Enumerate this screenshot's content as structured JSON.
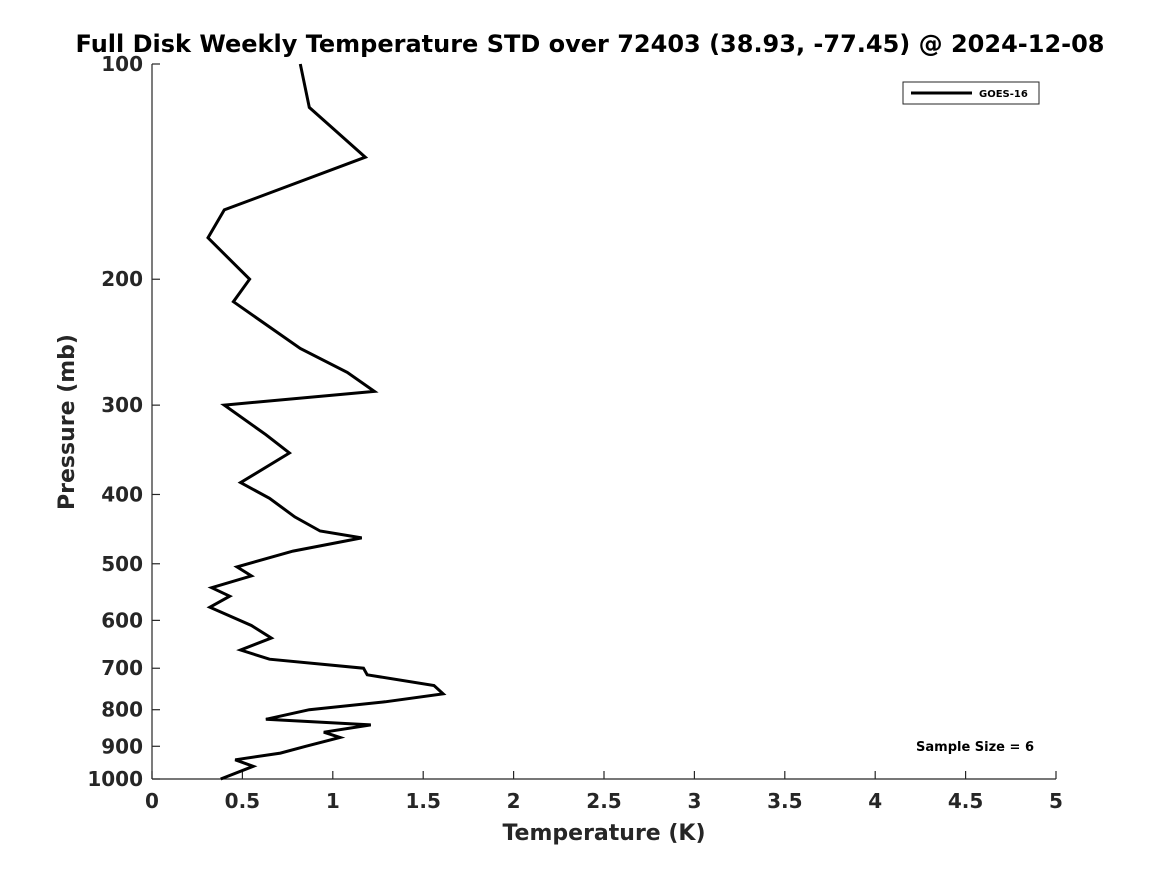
{
  "chart_data": {
    "type": "line",
    "title": "Full Disk Weekly Temperature STD over 72403 (38.93, -77.45) @ 2024-12-08",
    "xlabel": "Temperature (K)",
    "ylabel": "Pressure (mb)",
    "xlim": [
      0,
      5
    ],
    "ylim": [
      100,
      1000
    ],
    "y_scale": "log",
    "y_reversed": true,
    "x_ticks": [
      "0",
      "0.5",
      "1",
      "1.5",
      "2",
      "2.5",
      "3",
      "3.5",
      "4",
      "4.5",
      "5"
    ],
    "y_ticks": [
      "100",
      "200",
      "300",
      "400",
      "500",
      "600",
      "700",
      "800",
      "900",
      "1000"
    ],
    "grid": false,
    "legend": {
      "placement": "top-right",
      "entries": [
        "GOES-16"
      ]
    },
    "annotation": "Sample Size = 6",
    "series": [
      {
        "name": "GOES-16",
        "color": "#000000",
        "points": [
          [
            0.82,
            100
          ],
          [
            0.87,
            115
          ],
          [
            1.18,
            135
          ],
          [
            0.4,
            160
          ],
          [
            0.31,
            175
          ],
          [
            0.54,
            200
          ],
          [
            0.45,
            215
          ],
          [
            0.82,
            250
          ],
          [
            1.08,
            270
          ],
          [
            1.23,
            287
          ],
          [
            0.4,
            300
          ],
          [
            0.63,
            330
          ],
          [
            0.76,
            350
          ],
          [
            0.49,
            385
          ],
          [
            0.65,
            405
          ],
          [
            0.79,
            430
          ],
          [
            0.93,
            450
          ],
          [
            1.16,
            460
          ],
          [
            0.78,
            480
          ],
          [
            0.47,
            505
          ],
          [
            0.55,
            520
          ],
          [
            0.33,
            540
          ],
          [
            0.43,
            555
          ],
          [
            0.32,
            575
          ],
          [
            0.55,
            610
          ],
          [
            0.66,
            635
          ],
          [
            0.49,
            660
          ],
          [
            0.65,
            680
          ],
          [
            1.17,
            700
          ],
          [
            1.19,
            715
          ],
          [
            1.56,
            740
          ],
          [
            1.61,
            760
          ],
          [
            1.29,
            780
          ],
          [
            0.87,
            800
          ],
          [
            0.63,
            825
          ],
          [
            1.21,
            840
          ],
          [
            0.95,
            860
          ],
          [
            1.04,
            875
          ],
          [
            0.85,
            900
          ],
          [
            0.71,
            920
          ],
          [
            0.46,
            940
          ],
          [
            0.56,
            960
          ],
          [
            0.38,
            1000
          ]
        ]
      }
    ]
  }
}
